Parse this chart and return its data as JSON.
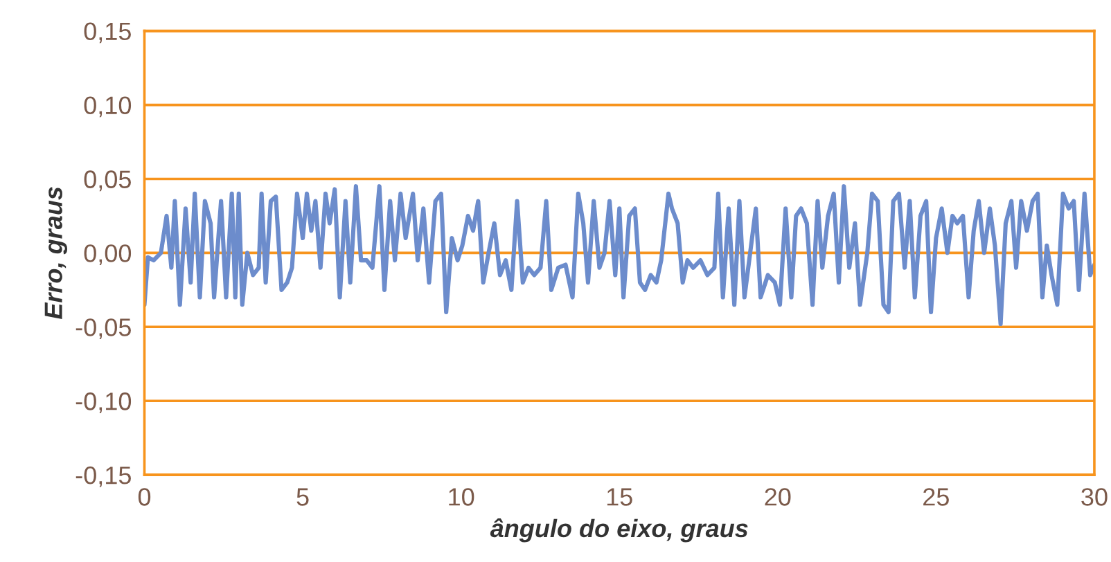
{
  "chart_data": {
    "type": "line",
    "xlabel": "ângulo do eixo, graus",
    "ylabel": "Erro, graus",
    "xlim": [
      0,
      30
    ],
    "xticks": [
      0,
      5,
      10,
      15,
      20,
      25,
      30
    ],
    "ylim": [
      -0.15,
      0.15
    ],
    "yticks": [
      {
        "value": -0.15,
        "label": "-0,15"
      },
      {
        "value": -0.1,
        "label": "-0,10"
      },
      {
        "value": -0.05,
        "label": "-0,05"
      },
      {
        "value": 0,
        "label": "0,00"
      },
      {
        "value": 0.05,
        "label": "0,05"
      },
      {
        "value": 0.1,
        "label": "0,10"
      },
      {
        "value": 0.15,
        "label": "0,15"
      }
    ],
    "grid": "y",
    "legend": false,
    "marker": "none",
    "line_style": "solid",
    "series": [
      {
        "color": "#6c8ccc",
        "x": [
          0,
          0.11,
          0.29,
          0.52,
          0.7,
          0.85,
          0.96,
          1.12,
          1.3,
          1.46,
          1.59,
          1.75,
          1.91,
          2.09,
          2.2,
          2.42,
          2.58,
          2.76,
          2.87,
          2.98,
          3.09,
          3.25,
          3.43,
          3.61,
          3.7,
          3.83,
          3.99,
          4.15,
          4.33,
          4.51,
          4.66,
          4.82,
          5.0,
          5.13,
          5.27,
          5.4,
          5.56,
          5.72,
          5.85,
          6.01,
          6.17,
          6.35,
          6.5,
          6.68,
          6.84,
          7.02,
          7.2,
          7.42,
          7.58,
          7.76,
          7.91,
          8.09,
          8.25,
          8.48,
          8.63,
          8.81,
          8.99,
          9.19,
          9.37,
          9.53,
          9.71,
          9.89,
          10.04,
          10.22,
          10.38,
          10.54,
          10.7,
          10.87,
          11.05,
          11.23,
          11.41,
          11.59,
          11.77,
          11.95,
          12.13,
          12.31,
          12.51,
          12.69,
          12.85,
          13.07,
          13.3,
          13.52,
          13.7,
          13.86,
          14.01,
          14.19,
          14.37,
          14.53,
          14.69,
          14.87,
          15.0,
          15.13,
          15.31,
          15.49,
          15.65,
          15.81,
          15.99,
          16.17,
          16.32,
          16.55,
          16.66,
          16.84,
          17.0,
          17.15,
          17.33,
          17.56,
          17.78,
          18.0,
          18.12,
          18.27,
          18.45,
          18.63,
          18.79,
          18.95,
          19.13,
          19.31,
          19.46,
          19.69,
          19.91,
          20.07,
          20.25,
          20.43,
          20.58,
          20.74,
          20.92,
          21.1,
          21.26,
          21.41,
          21.59,
          21.77,
          21.93,
          22.09,
          22.26,
          22.44,
          22.6,
          22.83,
          22.98,
          23.16,
          23.34,
          23.5,
          23.65,
          23.83,
          24.01,
          24.17,
          24.33,
          24.51,
          24.69,
          24.84,
          25.0,
          25.18,
          25.36,
          25.52,
          25.67,
          25.85,
          26.03,
          26.19,
          26.35,
          26.52,
          26.7,
          26.86,
          27.04,
          27.2,
          27.38,
          27.53,
          27.69,
          27.87,
          28.05,
          28.21,
          28.36,
          28.5,
          28.65,
          28.83,
          29.01,
          29.19,
          29.35,
          29.51,
          29.69,
          29.87,
          30.0
        ],
        "values": [
          -0.035,
          -0.003,
          -0.005,
          0.0,
          0.025,
          -0.01,
          0.035,
          -0.035,
          0.03,
          -0.02,
          0.04,
          -0.03,
          0.035,
          0.02,
          -0.03,
          0.035,
          -0.03,
          0.04,
          -0.03,
          0.04,
          -0.035,
          0.0,
          -0.015,
          -0.01,
          0.04,
          -0.02,
          0.035,
          0.038,
          -0.025,
          -0.02,
          -0.01,
          0.04,
          0.01,
          0.04,
          0.015,
          0.035,
          -0.01,
          0.04,
          0.02,
          0.043,
          -0.03,
          0.035,
          -0.02,
          0.045,
          -0.005,
          -0.005,
          -0.01,
          0.045,
          -0.025,
          0.035,
          -0.005,
          0.04,
          0.01,
          0.04,
          -0.005,
          0.03,
          -0.02,
          0.035,
          0.04,
          -0.04,
          0.01,
          -0.005,
          0.005,
          0.025,
          0.015,
          0.035,
          -0.02,
          0.0,
          0.02,
          -0.015,
          -0.005,
          -0.025,
          0.035,
          -0.02,
          -0.01,
          -0.015,
          -0.01,
          0.035,
          -0.025,
          -0.01,
          -0.008,
          -0.03,
          0.04,
          0.02,
          -0.02,
          0.035,
          -0.01,
          0.0,
          0.035,
          -0.015,
          0.03,
          -0.03,
          0.025,
          0.03,
          -0.02,
          -0.025,
          -0.015,
          -0.02,
          -0.005,
          0.04,
          0.03,
          0.02,
          -0.02,
          -0.005,
          -0.01,
          -0.005,
          -0.015,
          -0.01,
          0.04,
          -0.03,
          0.03,
          -0.035,
          0.035,
          -0.03,
          0.0,
          0.03,
          -0.03,
          -0.015,
          -0.02,
          -0.035,
          0.03,
          -0.03,
          0.025,
          0.03,
          0.02,
          -0.035,
          0.035,
          -0.01,
          0.025,
          0.04,
          -0.02,
          0.045,
          -0.01,
          0.02,
          -0.035,
          0.0,
          0.04,
          0.035,
          -0.035,
          -0.04,
          0.035,
          0.04,
          -0.01,
          0.035,
          -0.03,
          0.025,
          0.035,
          -0.04,
          0.01,
          0.03,
          0.0,
          0.025,
          0.02,
          0.025,
          -0.03,
          0.015,
          0.035,
          0.0,
          0.03,
          0.005,
          -0.048,
          0.02,
          0.035,
          -0.01,
          0.035,
          0.015,
          0.035,
          0.04,
          -0.03,
          0.005,
          -0.015,
          -0.035,
          0.04,
          0.03,
          0.035,
          -0.025,
          0.04,
          -0.015,
          -0.008
        ]
      }
    ]
  }
}
